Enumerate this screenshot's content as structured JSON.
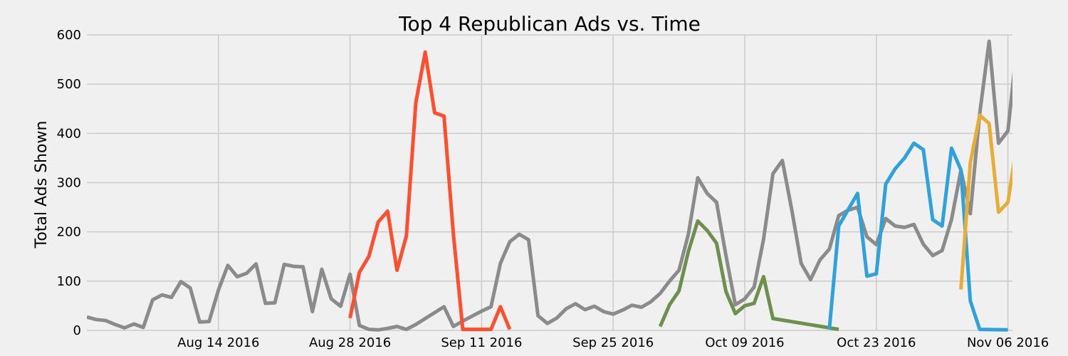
{
  "chart_data": {
    "type": "line",
    "title": "Top 4 Republican Ads vs. Time",
    "xlabel": "",
    "ylabel": "Total Ads Shown",
    "xlim": [
      "2016-07-31",
      "2016-11-07"
    ],
    "ylim": [
      0,
      600
    ],
    "grid": true,
    "legend": "none",
    "x_ticks": [
      "2016-08-14",
      "2016-08-28",
      "2016-09-11",
      "2016-09-25",
      "2016-10-09",
      "2016-10-23",
      "2016-11-06"
    ],
    "x_tick_labels": [
      "Aug 14 2016",
      "Aug 28 2016",
      "Sep 11 2016",
      "Sep 25 2016",
      "Oct 09 2016",
      "Oct 23 2016",
      "Nov 06 2016"
    ],
    "y_ticks": [
      0,
      100,
      200,
      300,
      400,
      500,
      600
    ],
    "y_tick_labels": [
      "0",
      "100",
      "200",
      "300",
      "400",
      "500",
      "600"
    ],
    "series": [
      {
        "color": "#8b8b8b",
        "points": [
          [
            "2016-07-31",
            27
          ],
          [
            "2016-08-01",
            22
          ],
          [
            "2016-08-02",
            20
          ],
          [
            "2016-08-03",
            12
          ],
          [
            "2016-08-04",
            5
          ],
          [
            "2016-08-05",
            13
          ],
          [
            "2016-08-06",
            6
          ],
          [
            "2016-08-07",
            62
          ],
          [
            "2016-08-08",
            72
          ],
          [
            "2016-08-09",
            67
          ],
          [
            "2016-08-10",
            99
          ],
          [
            "2016-08-11",
            86
          ],
          [
            "2016-08-12",
            17
          ],
          [
            "2016-08-13",
            18
          ],
          [
            "2016-08-14",
            82
          ],
          [
            "2016-08-15",
            132
          ],
          [
            "2016-08-16",
            109
          ],
          [
            "2016-08-17",
            116
          ],
          [
            "2016-08-18",
            135
          ],
          [
            "2016-08-19",
            55
          ],
          [
            "2016-08-20",
            56
          ],
          [
            "2016-08-21",
            134
          ],
          [
            "2016-08-22",
            130
          ],
          [
            "2016-08-23",
            129
          ],
          [
            "2016-08-24",
            38
          ],
          [
            "2016-08-25",
            124
          ],
          [
            "2016-08-26",
            64
          ],
          [
            "2016-08-27",
            49
          ],
          [
            "2016-08-28",
            114
          ],
          [
            "2016-08-29",
            10
          ],
          [
            "2016-08-30",
            2
          ],
          [
            "2016-08-31",
            1
          ],
          [
            "2016-09-01",
            4
          ],
          [
            "2016-09-02",
            8
          ],
          [
            "2016-09-03",
            2
          ],
          [
            "2016-09-04",
            12
          ],
          [
            "2016-09-05",
            24
          ],
          [
            "2016-09-06",
            36
          ],
          [
            "2016-09-07",
            48
          ],
          [
            "2016-09-08",
            8
          ],
          [
            "2016-09-09",
            19
          ],
          [
            "2016-09-10",
            29
          ],
          [
            "2016-09-11",
            39
          ],
          [
            "2016-09-12",
            48
          ],
          [
            "2016-09-13",
            136
          ],
          [
            "2016-09-14",
            180
          ],
          [
            "2016-09-15",
            195
          ],
          [
            "2016-09-16",
            184
          ],
          [
            "2016-09-17",
            30
          ],
          [
            "2016-09-18",
            14
          ],
          [
            "2016-09-19",
            25
          ],
          [
            "2016-09-20",
            44
          ],
          [
            "2016-09-21",
            54
          ],
          [
            "2016-09-22",
            42
          ],
          [
            "2016-09-23",
            49
          ],
          [
            "2016-09-24",
            38
          ],
          [
            "2016-09-25",
            33
          ],
          [
            "2016-09-26",
            41
          ],
          [
            "2016-09-27",
            51
          ],
          [
            "2016-09-28",
            47
          ],
          [
            "2016-09-29",
            58
          ],
          [
            "2016-09-30",
            75
          ],
          [
            "2016-10-01",
            100
          ],
          [
            "2016-10-02",
            122
          ],
          [
            "2016-10-03",
            195
          ],
          [
            "2016-10-04",
            310
          ],
          [
            "2016-10-05",
            278
          ],
          [
            "2016-10-06",
            260
          ],
          [
            "2016-10-07",
            152
          ],
          [
            "2016-10-08",
            52
          ],
          [
            "2016-10-09",
            64
          ],
          [
            "2016-10-10",
            88
          ],
          [
            "2016-10-11",
            185
          ],
          [
            "2016-10-12",
            318
          ],
          [
            "2016-10-13",
            345
          ],
          [
            "2016-10-14",
            245
          ],
          [
            "2016-10-15",
            136
          ],
          [
            "2016-10-16",
            103
          ],
          [
            "2016-10-17",
            143
          ],
          [
            "2016-10-18",
            165
          ],
          [
            "2016-10-19",
            233
          ],
          [
            "2016-10-20",
            244
          ],
          [
            "2016-10-21",
            250
          ],
          [
            "2016-10-22",
            190
          ],
          [
            "2016-10-23",
            174
          ],
          [
            "2016-10-24",
            227
          ],
          [
            "2016-10-25",
            212
          ],
          [
            "2016-10-26",
            209
          ],
          [
            "2016-10-27",
            215
          ],
          [
            "2016-10-28",
            175
          ],
          [
            "2016-10-29",
            152
          ],
          [
            "2016-10-30",
            162
          ],
          [
            "2016-10-31",
            225
          ],
          [
            "2016-11-01",
            325
          ],
          [
            "2016-11-02",
            237
          ],
          [
            "2016-11-03",
            440
          ],
          [
            "2016-11-04",
            587
          ],
          [
            "2016-11-05",
            380
          ],
          [
            "2016-11-06",
            405
          ],
          [
            "2016-11-07",
            585
          ],
          [
            "2016-11-08",
            505
          ]
        ]
      },
      {
        "color": "#fc4f30",
        "points": [
          [
            "2016-08-28",
            25
          ],
          [
            "2016-08-29",
            118
          ],
          [
            "2016-08-30",
            150
          ],
          [
            "2016-08-31",
            220
          ],
          [
            "2016-09-01",
            242
          ],
          [
            "2016-09-02",
            122
          ],
          [
            "2016-09-03",
            192
          ],
          [
            "2016-09-04",
            462
          ],
          [
            "2016-09-05",
            565
          ],
          [
            "2016-09-06",
            442
          ],
          [
            "2016-09-07",
            435
          ],
          [
            "2016-09-08",
            195
          ],
          [
            "2016-09-09",
            2
          ],
          [
            "2016-09-10",
            2
          ],
          [
            "2016-09-11",
            2
          ],
          [
            "2016-09-12",
            2
          ],
          [
            "2016-09-13",
            48
          ],
          [
            "2016-09-14",
            2
          ]
        ]
      },
      {
        "color": "#6d904f",
        "points": [
          [
            "2016-09-30",
            8
          ],
          [
            "2016-10-01",
            52
          ],
          [
            "2016-10-02",
            80
          ],
          [
            "2016-10-03",
            160
          ],
          [
            "2016-10-04",
            222
          ],
          [
            "2016-10-05",
            203
          ],
          [
            "2016-10-06",
            177
          ],
          [
            "2016-10-07",
            79
          ],
          [
            "2016-10-08",
            34
          ],
          [
            "2016-10-09",
            50
          ],
          [
            "2016-10-10",
            55
          ],
          [
            "2016-10-11",
            109
          ],
          [
            "2016-10-12",
            24
          ],
          [
            "2016-10-19",
            2
          ]
        ]
      },
      {
        "color": "#30a2da",
        "points": [
          [
            "2016-10-18",
            2
          ],
          [
            "2016-10-19",
            212
          ],
          [
            "2016-10-20",
            245
          ],
          [
            "2016-10-21",
            278
          ],
          [
            "2016-10-22",
            110
          ],
          [
            "2016-10-23",
            115
          ],
          [
            "2016-10-24",
            297
          ],
          [
            "2016-10-25",
            328
          ],
          [
            "2016-10-26",
            350
          ],
          [
            "2016-10-27",
            380
          ],
          [
            "2016-10-28",
            367
          ],
          [
            "2016-10-29",
            225
          ],
          [
            "2016-10-30",
            212
          ],
          [
            "2016-10-31",
            370
          ],
          [
            "2016-11-01",
            326
          ],
          [
            "2016-11-02",
            60
          ],
          [
            "2016-11-03",
            2
          ],
          [
            "2016-11-06",
            1
          ]
        ]
      },
      {
        "color": "#e5ae38",
        "points": [
          [
            "2016-11-01",
            83
          ],
          [
            "2016-11-02",
            340
          ],
          [
            "2016-11-03",
            437
          ],
          [
            "2016-11-04",
            420
          ],
          [
            "2016-11-05",
            240
          ],
          [
            "2016-11-06",
            260
          ],
          [
            "2016-11-07",
            385
          ],
          [
            "2016-11-08",
            350
          ]
        ]
      }
    ]
  }
}
